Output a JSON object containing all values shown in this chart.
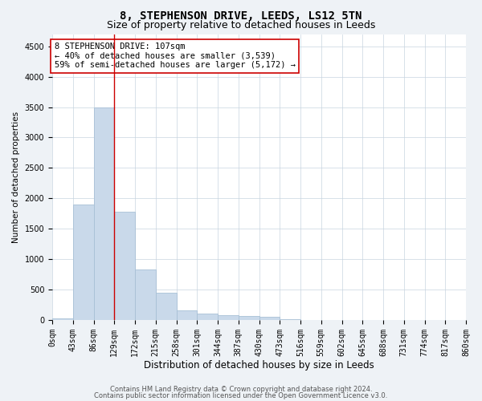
{
  "title": "8, STEPHENSON DRIVE, LEEDS, LS12 5TN",
  "subtitle": "Size of property relative to detached houses in Leeds",
  "xlabel": "Distribution of detached houses by size in Leeds",
  "ylabel": "Number of detached properties",
  "bar_values": [
    30,
    1900,
    3500,
    1780,
    830,
    450,
    160,
    100,
    80,
    70,
    50,
    10,
    5,
    5,
    5,
    5,
    5,
    5,
    5,
    5
  ],
  "x_labels": [
    "0sqm",
    "43sqm",
    "86sqm",
    "129sqm",
    "172sqm",
    "215sqm",
    "258sqm",
    "301sqm",
    "344sqm",
    "387sqm",
    "430sqm",
    "473sqm",
    "516sqm",
    "559sqm",
    "602sqm",
    "645sqm",
    "688sqm",
    "731sqm",
    "774sqm",
    "817sqm",
    "860sqm"
  ],
  "bar_color": "#c9d9ea",
  "bar_edge_color": "#a8c0d6",
  "vline_x": 2.5,
  "vline_color": "#cc0000",
  "annotation_text": "8 STEPHENSON DRIVE: 107sqm\n← 40% of detached houses are smaller (3,539)\n59% of semi-detached houses are larger (5,172) →",
  "annotation_box_color": "#ffffff",
  "annotation_box_edge": "#cc0000",
  "ylim": [
    0,
    4700
  ],
  "yticks": [
    0,
    500,
    1000,
    1500,
    2000,
    2500,
    3000,
    3500,
    4000,
    4500
  ],
  "footer1": "Contains HM Land Registry data © Crown copyright and database right 2024.",
  "footer2": "Contains public sector information licensed under the Open Government Licence v3.0.",
  "bg_color": "#eef2f6",
  "plot_bg_color": "#ffffff",
  "title_fontsize": 10,
  "subtitle_fontsize": 9,
  "ann_fontsize": 7.5,
  "ylabel_fontsize": 7.5,
  "xlabel_fontsize": 8.5,
  "tick_fontsize": 7
}
